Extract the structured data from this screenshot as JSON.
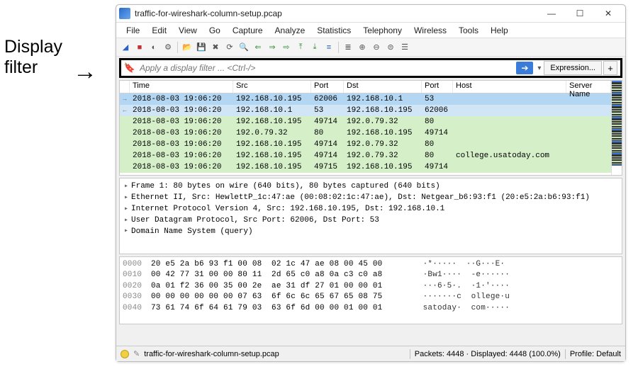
{
  "annotation": {
    "line1": "Display",
    "line2": "filter"
  },
  "window": {
    "title": "traffic-for-wireshark-column-setup.pcap",
    "controls": {
      "min": "—",
      "max": "☐",
      "close": "✕"
    }
  },
  "menu": [
    "File",
    "Edit",
    "View",
    "Go",
    "Capture",
    "Analyze",
    "Statistics",
    "Telephony",
    "Wireless",
    "Tools",
    "Help"
  ],
  "filter": {
    "placeholder": "Apply a display filter ... <Ctrl-/>",
    "expression_label": "Expression...",
    "plus_label": "+"
  },
  "columns": [
    "Time",
    "Src",
    "Port",
    "Dst",
    "Port",
    "Host",
    "Server Name"
  ],
  "column_widths": {
    "time": 146,
    "src": 110,
    "port1": 46,
    "dst": 110,
    "port2": 44,
    "host": 160
  },
  "rows": [
    {
      "style": "sel",
      "marker": "→",
      "time": "2018-08-03 19:06:20",
      "src": "192.168.10.195",
      "sport": "62006",
      "dst": "192.168.10.1",
      "dport": "53",
      "host": "",
      "server": ""
    },
    {
      "style": "sel2",
      "marker": "←",
      "time": "2018-08-03 19:06:20",
      "src": "192.168.10.1",
      "sport": "53",
      "dst": "192.168.10.195",
      "dport": "62006",
      "host": "",
      "server": ""
    },
    {
      "style": "grn",
      "marker": "",
      "time": "2018-08-03 19:06:20",
      "src": "192.168.10.195",
      "sport": "49714",
      "dst": "192.0.79.32",
      "dport": "80",
      "host": "",
      "server": ""
    },
    {
      "style": "grn",
      "marker": "",
      "time": "2018-08-03 19:06:20",
      "src": "192.0.79.32",
      "sport": "80",
      "dst": "192.168.10.195",
      "dport": "49714",
      "host": "",
      "server": ""
    },
    {
      "style": "grn",
      "marker": "",
      "time": "2018-08-03 19:06:20",
      "src": "192.168.10.195",
      "sport": "49714",
      "dst": "192.0.79.32",
      "dport": "80",
      "host": "",
      "server": ""
    },
    {
      "style": "grn",
      "marker": "",
      "time": "2018-08-03 19:06:20",
      "src": "192.168.10.195",
      "sport": "49714",
      "dst": "192.0.79.32",
      "dport": "80",
      "host": "college.usatoday.com",
      "server": ""
    },
    {
      "style": "grn",
      "marker": "",
      "time": "2018-08-03 19:06:20",
      "src": "192.168.10.195",
      "sport": "49715",
      "dst": "192.168.10.195",
      "dport": "49714",
      "host": "",
      "server": ""
    }
  ],
  "row_colors": {
    "sel": "#b3d6f2",
    "sel2": "#d0e5f5",
    "grn": "#d5f0c8"
  },
  "details": [
    "Frame 1: 80 bytes on wire (640 bits), 80 bytes captured (640 bits)",
    "Ethernet II, Src: HewlettP_1c:47:ae (00:08:02:1c:47:ae), Dst: Netgear_b6:93:f1 (20:e5:2a:b6:93:f1)",
    "Internet Protocol Version 4, Src: 192.168.10.195, Dst: 192.168.10.1",
    "User Datagram Protocol, Src Port: 62006, Dst Port: 53",
    "Domain Name System (query)"
  ],
  "hex": [
    {
      "off": "0000",
      "bytes": "20 e5 2a b6 93 f1 00 08  02 1c 47 ae 08 00 45 00",
      "ascii": "  ·*·····  ··G···E·"
    },
    {
      "off": "0010",
      "bytes": "00 42 77 31 00 00 80 11  2d 65 c0 a8 0a c3 c0 a8",
      "ascii": "  ·Bw1····  -e······"
    },
    {
      "off": "0020",
      "bytes": "0a 01 f2 36 00 35 00 2e  ae 31 df 27 01 00 00 01",
      "ascii": "  ···6·5·.  ·1·'····"
    },
    {
      "off": "0030",
      "bytes": "00 00 00 00 00 00 07 63  6f 6c 6c 65 67 65 08 75",
      "ascii": "  ·······c  ollege·u"
    },
    {
      "off": "0040",
      "bytes": "73 61 74 6f 64 61 79 03  63 6f 6d 00 00 01 00 01",
      "ascii": "  satoday·  com·····"
    }
  ],
  "status": {
    "file": "traffic-for-wireshark-column-setup.pcap",
    "packets": "Packets: 4448 · Displayed: 4448 (100.0%)",
    "profile": "Profile: Default"
  },
  "overview_colors": [
    "#3a7cd8",
    "#3a7cd8",
    "#333",
    "#333",
    "#333",
    "#c0e0b0",
    "#333",
    "#333",
    "#c0e0b0",
    "#333",
    "#333",
    "#c0e0b0",
    "#c0e0b0",
    "#333",
    "#333",
    "#c0e0b0",
    "#333"
  ]
}
